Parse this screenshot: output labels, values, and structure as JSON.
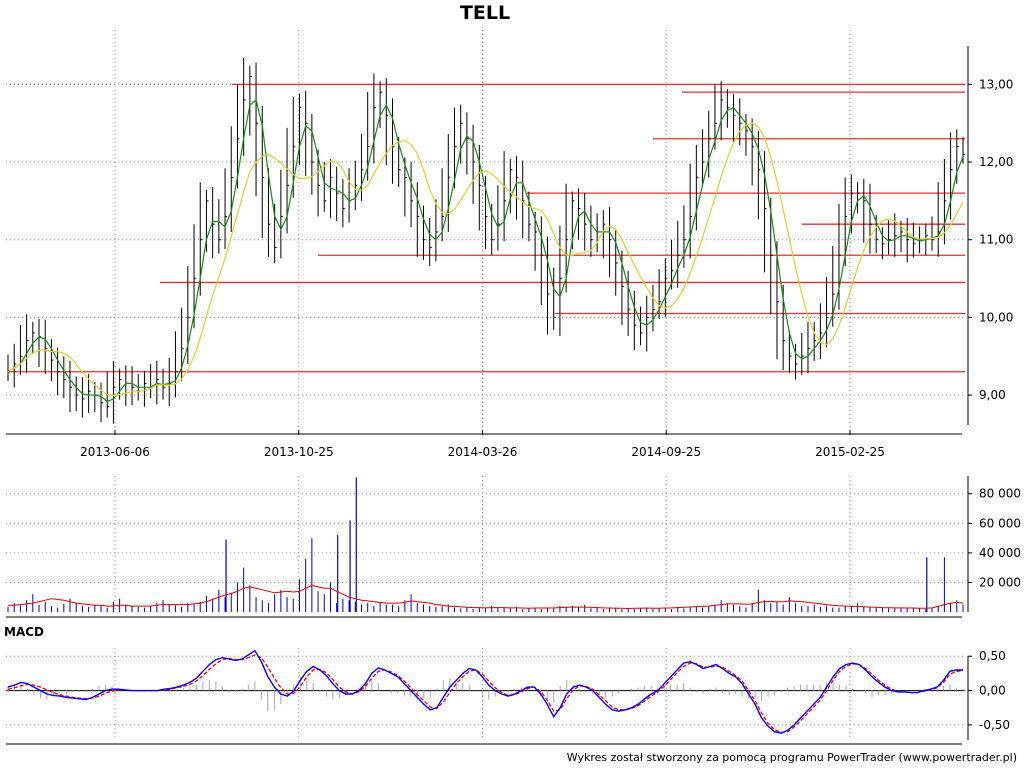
{
  "colors": {
    "price_bar": "#000000",
    "sma_short": "#1a8a1a",
    "sma_long": "#e0d030",
    "level_line": "#e83030",
    "volume_bar": "#0000cc",
    "volume_avg": "#e00000",
    "macd_line": "#0000ff",
    "macd_signal": "#ff0000",
    "macd_hist": "#a0a8b8",
    "grid": "#9a9a9a"
  },
  "chart_data": [
    {
      "type": "line",
      "title": "TELL",
      "subtype": "ohlc-bars",
      "x_ticks": [
        "2013-06-06",
        "2013-10-25",
        "2014-03-26",
        "2014-09-25",
        "2015-02-25"
      ],
      "y_ticks": [
        "9,00",
        "10,00",
        "11,00",
        "12,00",
        "13,00"
      ],
      "ylim": [
        8.55,
        13.7
      ],
      "grid": "dotted",
      "series": [
        {
          "values": [
            9.3,
            9.4,
            9.5,
            9.7,
            9.8,
            9.75,
            9.6,
            9.45,
            9.3,
            9.2,
            9.1,
            9.0,
            8.95,
            9.05,
            9.0,
            8.9,
            8.85,
            9.1,
            9.2,
            9.15,
            9.1,
            9.05,
            9.15,
            9.1,
            9.2,
            9.1,
            9.15,
            9.3,
            9.6,
            10.0,
            10.5,
            11.0,
            11.5,
            11.2,
            11.0,
            11.3,
            11.8,
            12.3,
            12.8,
            13.1,
            12.5,
            11.8,
            11.2,
            10.9,
            11.3,
            11.7,
            12.2,
            12.7,
            12.5,
            12.0,
            11.7,
            11.5,
            11.8,
            11.6,
            11.4,
            11.5,
            11.7,
            11.9,
            12.2,
            12.7,
            12.9,
            12.6,
            12.2,
            11.9,
            11.8,
            11.5,
            11.3,
            11.0,
            10.9,
            11.1,
            11.3,
            11.8,
            12.2,
            12.5,
            12.3,
            12.0,
            11.7,
            11.3,
            11.0,
            11.2,
            11.5,
            11.9,
            11.8,
            11.5,
            11.2,
            11.1,
            10.8,
            10.3,
            10.0,
            10.5,
            11.0,
            11.5,
            11.4,
            11.2,
            11.0,
            11.1,
            11.2,
            11.0,
            10.7,
            10.4,
            10.1,
            9.9,
            9.8,
            10.0,
            10.1,
            10.2,
            10.5,
            10.6,
            10.8,
            11.0,
            11.3,
            11.8,
            12.0,
            12.3,
            12.5,
            12.8,
            12.7,
            12.6,
            12.5,
            12.4,
            12.2,
            11.9,
            11.4,
            10.8,
            10.2,
            9.7,
            9.5,
            9.4,
            9.5,
            9.6,
            9.7,
            9.8,
            10.0,
            10.3,
            10.8,
            11.3,
            11.6,
            11.6,
            11.5,
            11.2,
            11.0,
            10.95,
            11.0,
            11.05,
            11.1,
            11.0,
            10.95,
            11.0,
            11.05,
            11.0,
            11.1,
            11.5,
            11.9,
            12.2,
            12.1
          ]
        }
      ],
      "horizontal_levels": [
        9.3,
        10.05,
        10.45,
        10.8,
        11.2,
        11.6,
        12.3,
        12.9,
        13.0
      ]
    },
    {
      "type": "bar",
      "title": "",
      "y_ticks": [
        "20 000",
        "40 000",
        "60 000",
        "80 000"
      ],
      "ylim": [
        0,
        92000
      ],
      "grid": "dotted",
      "values": [
        3500,
        6000,
        4500,
        8000,
        12000,
        5000,
        7000,
        4000,
        3000,
        5500,
        9000,
        6000,
        4000,
        3500,
        5000,
        4500,
        3000,
        7000,
        9000,
        5000,
        4000,
        3500,
        3000,
        4000,
        6000,
        8000,
        5500,
        4500,
        3500,
        6000,
        5000,
        7000,
        11000,
        9000,
        15000,
        10000,
        13000,
        20000,
        30000,
        18000,
        10000,
        8000,
        6000,
        12000,
        15000,
        10000,
        9000,
        22000,
        36000,
        50000,
        14000,
        12000,
        20000,
        6000,
        9000,
        8000,
        7000,
        5000,
        6000,
        4000,
        6500,
        5000,
        5000,
        4000,
        8000,
        12000,
        6000,
        5000,
        4000,
        3500,
        4000,
        5000,
        3000,
        2500,
        3000,
        2000,
        3000,
        2500,
        4000,
        3000,
        3000,
        2500,
        3500,
        2000,
        2500,
        3000,
        2000,
        2500,
        3000,
        4000,
        3000,
        4000,
        3000,
        5000,
        2500,
        3000,
        2000,
        2500,
        3000,
        2000,
        2500,
        2000,
        2500,
        3000,
        2000,
        2500,
        3000,
        2000,
        3500,
        2500,
        3000,
        3500,
        3000,
        4000,
        5000,
        8000,
        6000,
        5000,
        4000,
        3000,
        6000,
        15000,
        8000,
        6000,
        7000,
        5000,
        10000,
        6000,
        4000,
        4000,
        5000,
        3500,
        4000,
        3000,
        3000,
        4000,
        4000,
        6000,
        3500,
        3000,
        3000,
        3000,
        2500,
        3000,
        3000,
        2500,
        3000,
        2500,
        2000,
        3000,
        4000,
        37000,
        6000,
        8000,
        5000
      ],
      "spikes": [
        {
          "date_index": 35,
          "value": 49000
        },
        {
          "date_index": 53,
          "value": 52000
        },
        {
          "date_index": 55,
          "value": 62000
        },
        {
          "date_index": 56,
          "value": 91000
        },
        {
          "date_index": 148,
          "value": 37000
        }
      ],
      "average_line": [
        4500,
        4500,
        5000,
        5500,
        6000,
        7000,
        8000,
        9000,
        8500,
        8000,
        7000,
        6000,
        5500,
        5000,
        4500,
        4500,
        4000,
        4000,
        4500,
        4500,
        4000,
        4000,
        4000,
        4000,
        4500,
        5000,
        5000,
        5000,
        5000,
        5000,
        5500,
        6000,
        7000,
        8500,
        10000,
        11500,
        12500,
        14000,
        16000,
        17000,
        16000,
        15000,
        14000,
        13000,
        13500,
        14000,
        13500,
        14000,
        16000,
        18000,
        17000,
        16000,
        16000,
        14000,
        12000,
        10000,
        9000,
        8000,
        7500,
        7000,
        6500,
        6000,
        6000,
        6000,
        6500,
        7500,
        7000,
        6500,
        6000,
        5000,
        4500,
        4000,
        3800,
        3500,
        3200,
        3000,
        3000,
        2800,
        3000,
        3000,
        3000,
        2800,
        2800,
        2700,
        2600,
        2700,
        2700,
        2700,
        2800,
        3000,
        3200,
        3400,
        3300,
        3300,
        3200,
        3000,
        2800,
        2700,
        2600,
        2500,
        2400,
        2500,
        2600,
        2700,
        2600,
        2600,
        2700,
        2800,
        3000,
        3200,
        3400,
        3600,
        3800,
        4000,
        4500,
        5000,
        5500,
        5500,
        5500,
        5200,
        5500,
        6500,
        7000,
        7200,
        7000,
        7000,
        7500,
        7200,
        7000,
        6500,
        6000,
        5500,
        5000,
        4500,
        4200,
        4000,
        3800,
        3800,
        3500,
        3300,
        3200,
        3000,
        2900,
        2800,
        2800,
        2700,
        2700,
        2600,
        2600,
        2800,
        3800,
        5000,
        6000,
        6500,
        6000
      ]
    },
    {
      "type": "line",
      "title": "MACD",
      "y_ticks": [
        "-0,50",
        "0,00",
        "0,50"
      ],
      "ylim": [
        -0.72,
        0.62
      ],
      "grid": "dotted",
      "series": [
        {
          "values": [
            0.05,
            0.08,
            0.12,
            0.1,
            0.05,
            0.0,
            -0.05,
            -0.07,
            -0.08,
            -0.1,
            -0.11,
            -0.12,
            -0.13,
            -0.1,
            -0.05,
            0.0,
            0.02,
            0.02,
            0.01,
            0.0,
            0.0,
            0.0,
            0.0,
            0.0,
            0.02,
            0.03,
            0.05,
            0.08,
            0.12,
            0.18,
            0.28,
            0.38,
            0.45,
            0.48,
            0.46,
            0.44,
            0.46,
            0.52,
            0.58,
            0.42,
            0.2,
            0.05,
            -0.05,
            -0.08,
            0.0,
            0.15,
            0.28,
            0.35,
            0.3,
            0.22,
            0.1,
            0.0,
            -0.05,
            -0.05,
            0.0,
            0.1,
            0.25,
            0.33,
            0.3,
            0.25,
            0.2,
            0.1,
            0.0,
            -0.1,
            -0.2,
            -0.28,
            -0.25,
            -0.1,
            0.05,
            0.15,
            0.25,
            0.32,
            0.3,
            0.2,
            0.08,
            0.0,
            -0.05,
            -0.08,
            -0.05,
            0.0,
            0.05,
            0.05,
            -0.05,
            -0.2,
            -0.38,
            -0.25,
            -0.05,
            0.05,
            0.08,
            0.05,
            0.0,
            -0.1,
            -0.2,
            -0.28,
            -0.3,
            -0.28,
            -0.25,
            -0.2,
            -0.12,
            -0.05,
            0.0,
            0.1,
            0.2,
            0.3,
            0.4,
            0.42,
            0.38,
            0.32,
            0.35,
            0.38,
            0.32,
            0.25,
            0.2,
            0.1,
            -0.05,
            -0.2,
            -0.4,
            -0.52,
            -0.6,
            -0.62,
            -0.58,
            -0.5,
            -0.4,
            -0.3,
            -0.2,
            -0.1,
            0.05,
            0.2,
            0.32,
            0.38,
            0.4,
            0.38,
            0.3,
            0.2,
            0.12,
            0.05,
            0.0,
            -0.02,
            -0.02,
            -0.03,
            -0.03,
            0.0,
            0.02,
            0.05,
            0.15,
            0.28,
            0.3,
            0.3
          ]
        },
        {
          "values": [
            0.02,
            0.04,
            0.07,
            0.09,
            0.08,
            0.05,
            0.01,
            -0.03,
            -0.06,
            -0.08,
            -0.1,
            -0.11,
            -0.12,
            -0.11,
            -0.08,
            -0.04,
            -0.01,
            0.01,
            0.01,
            0.0,
            0.0,
            0.0,
            0.0,
            0.0,
            0.01,
            0.02,
            0.04,
            0.06,
            0.09,
            0.14,
            0.22,
            0.31,
            0.39,
            0.45,
            0.47,
            0.45,
            0.45,
            0.48,
            0.52,
            0.48,
            0.34,
            0.18,
            0.04,
            -0.05,
            -0.04,
            0.06,
            0.2,
            0.3,
            0.31,
            0.26,
            0.16,
            0.05,
            -0.02,
            -0.05,
            -0.02,
            0.06,
            0.18,
            0.28,
            0.3,
            0.27,
            0.22,
            0.14,
            0.04,
            -0.06,
            -0.15,
            -0.24,
            -0.26,
            -0.17,
            -0.03,
            0.1,
            0.2,
            0.28,
            0.3,
            0.24,
            0.14,
            0.04,
            -0.03,
            -0.07,
            -0.06,
            -0.02,
            0.03,
            0.05,
            -0.01,
            -0.14,
            -0.3,
            -0.28,
            -0.12,
            0.01,
            0.07,
            0.06,
            0.02,
            -0.06,
            -0.15,
            -0.24,
            -0.28,
            -0.28,
            -0.26,
            -0.22,
            -0.15,
            -0.08,
            -0.02,
            0.06,
            0.16,
            0.26,
            0.35,
            0.4,
            0.39,
            0.34,
            0.34,
            0.36,
            0.34,
            0.28,
            0.22,
            0.14,
            0.0,
            -0.15,
            -0.33,
            -0.48,
            -0.57,
            -0.61,
            -0.6,
            -0.53,
            -0.44,
            -0.34,
            -0.24,
            -0.14,
            0.0,
            0.15,
            0.28,
            0.35,
            0.39,
            0.38,
            0.32,
            0.24,
            0.15,
            0.08,
            0.02,
            -0.01,
            -0.02,
            -0.03,
            -0.03,
            -0.01,
            0.01,
            0.04,
            0.12,
            0.24,
            0.28,
            0.29
          ]
        },
        {
          "values": [
            0.03,
            0.04,
            0.05,
            0.01,
            -0.03,
            -0.05,
            -0.06,
            -0.04,
            -0.02,
            -0.02,
            -0.01,
            -0.01,
            -0.01,
            0.01,
            0.03,
            0.04,
            0.03,
            0.01,
            0.0,
            0.0,
            0.0,
            0.0,
            0.0,
            0.0,
            0.01,
            0.01,
            0.01,
            0.02,
            0.03,
            0.04,
            0.06,
            0.07,
            0.06,
            0.03,
            -0.01,
            -0.01,
            0.01,
            0.04,
            0.06,
            -0.06,
            -0.14,
            -0.13,
            -0.09,
            -0.03,
            0.04,
            0.09,
            0.08,
            0.05,
            -0.01,
            -0.04,
            -0.06,
            -0.05,
            -0.03,
            0.0,
            0.02,
            0.04,
            0.07,
            0.05,
            0.0,
            -0.02,
            -0.02,
            -0.04,
            -0.04,
            -0.04,
            -0.05,
            -0.04,
            0.01,
            0.07,
            0.08,
            0.05,
            0.05,
            0.04,
            0.0,
            -0.04,
            -0.06,
            -0.04,
            -0.02,
            -0.01,
            0.01,
            0.02,
            0.02,
            0.0,
            -0.04,
            -0.06,
            -0.08,
            0.03,
            0.07,
            0.04,
            0.01,
            -0.01,
            -0.02,
            -0.04,
            -0.05,
            -0.04,
            -0.02,
            0.0,
            0.01,
            0.02,
            0.03,
            0.03,
            0.02,
            0.04,
            0.04,
            0.04,
            0.05,
            0.02,
            -0.01,
            -0.02,
            0.01,
            0.02,
            -0.02,
            -0.03,
            -0.02,
            -0.04,
            -0.05,
            -0.05,
            -0.07,
            -0.04,
            -0.03,
            -0.01,
            0.02,
            0.03,
            0.04,
            0.04,
            0.04,
            0.04,
            0.05,
            0.05,
            0.04,
            0.03,
            0.01,
            0.0,
            -0.02,
            -0.04,
            -0.03,
            -0.03,
            -0.02,
            -0.01,
            0.0,
            0.0,
            0.0,
            0.01,
            0.01,
            0.01,
            0.03,
            0.04,
            0.02,
            0.01
          ]
        }
      ]
    }
  ],
  "footer": {
    "credit": "Wykres został stworzony za pomocą programu PowerTrader (www.powertrader.pl)"
  }
}
